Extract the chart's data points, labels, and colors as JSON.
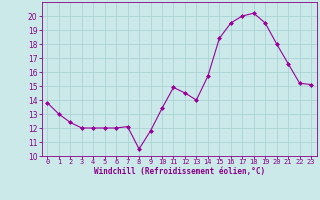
{
  "x": [
    0,
    1,
    2,
    3,
    4,
    5,
    6,
    7,
    8,
    9,
    10,
    11,
    12,
    13,
    14,
    15,
    16,
    17,
    18,
    19,
    20,
    21,
    22,
    23
  ],
  "y": [
    13.8,
    13.0,
    12.4,
    12.0,
    12.0,
    12.0,
    12.0,
    12.1,
    10.5,
    11.8,
    13.4,
    14.9,
    14.5,
    14.0,
    15.7,
    18.4,
    19.5,
    20.0,
    20.2,
    19.5,
    18.0,
    16.6,
    15.2,
    15.1
  ],
  "line_color": "#990099",
  "marker": "D",
  "marker_size": 2.0,
  "background_color": "#cce9e9",
  "grid_color": "#aad4d4",
  "tick_color": "#880088",
  "label_color": "#880088",
  "xlabel": "Windchill (Refroidissement éolien,°C)",
  "ylim": [
    10,
    21
  ],
  "xlim": [
    -0.5,
    23.5
  ],
  "yticks": [
    10,
    11,
    12,
    13,
    14,
    15,
    16,
    17,
    18,
    19,
    20
  ],
  "xticks": [
    0,
    1,
    2,
    3,
    4,
    5,
    6,
    7,
    8,
    9,
    10,
    11,
    12,
    13,
    14,
    15,
    16,
    17,
    18,
    19,
    20,
    21,
    22,
    23
  ],
  "xlabel_fontsize": 5.5,
  "tick_fontsize": 5.0,
  "ytick_fontsize": 5.5
}
